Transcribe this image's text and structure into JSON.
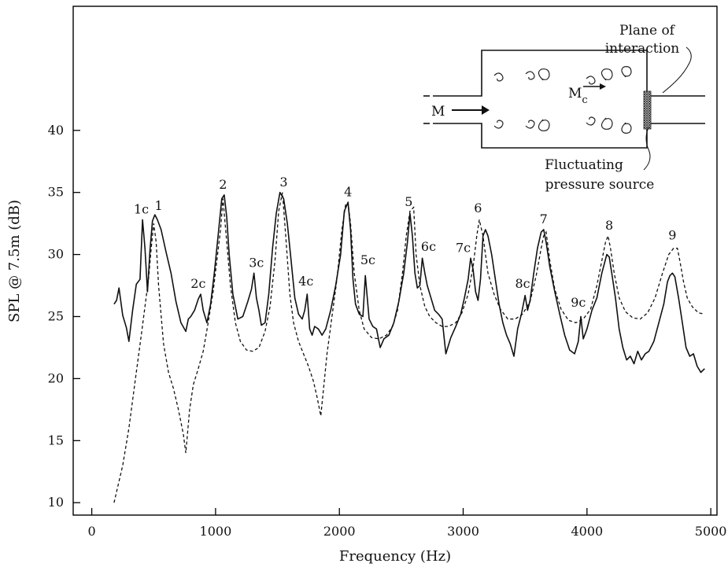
{
  "chart_data": {
    "type": "line",
    "xlabel": "Frequency (Hz)",
    "ylabel": "SPL @ 7.5m (dB)",
    "xlim": [
      -150,
      5050
    ],
    "ylim": [
      9,
      50
    ],
    "xticks": [
      0,
      1000,
      2000,
      3000,
      4000,
      5000
    ],
    "yticks": [
      10,
      15,
      20,
      25,
      30,
      35,
      40
    ],
    "grid": false,
    "series": [
      {
        "style": "solid",
        "x": [
          180,
          200,
          220,
          250,
          280,
          300,
          330,
          360,
          390,
          410,
          430,
          450,
          470,
          490,
          510,
          530,
          560,
          600,
          640,
          680,
          720,
          760,
          780,
          800,
          830,
          860,
          880,
          900,
          930,
          960,
          990,
          1020,
          1050,
          1070,
          1090,
          1110,
          1140,
          1180,
          1220,
          1260,
          1290,
          1310,
          1330,
          1350,
          1370,
          1400,
          1430,
          1460,
          1490,
          1520,
          1550,
          1580,
          1610,
          1640,
          1670,
          1700,
          1720,
          1740,
          1760,
          1780,
          1800,
          1830,
          1860,
          1890,
          1930,
          1970,
          2010,
          2040,
          2070,
          2090,
          2110,
          2130,
          2160,
          2190,
          2210,
          2240,
          2270,
          2300,
          2330,
          2360,
          2400,
          2440,
          2480,
          2520,
          2550,
          2570,
          2590,
          2610,
          2630,
          2650,
          2670,
          2690,
          2710,
          2740,
          2770,
          2800,
          2830,
          2860,
          2900,
          2940,
          2980,
          3010,
          3040,
          3060,
          3080,
          3100,
          3120,
          3140,
          3160,
          3180,
          3200,
          3230,
          3260,
          3290,
          3320,
          3350,
          3380,
          3410,
          3440,
          3470,
          3500,
          3520,
          3540,
          3570,
          3600,
          3630,
          3650,
          3670,
          3700,
          3740,
          3780,
          3820,
          3860,
          3900,
          3930,
          3950,
          3970,
          4000,
          4040,
          4080,
          4120,
          4160,
          4180,
          4200,
          4230,
          4260,
          4290,
          4320,
          4350,
          4380,
          4410,
          4440,
          4470,
          4500,
          4540,
          4580,
          4620,
          4650,
          4670,
          4690,
          4710,
          4740,
          4770,
          4800,
          4830,
          4860,
          4890,
          4920,
          4950
        ],
        "y": [
          26,
          26.3,
          27.3,
          25.1,
          24.1,
          23,
          25.5,
          27.6,
          28,
          32.8,
          30.5,
          27,
          30.3,
          32.7,
          33.2,
          32.8,
          32,
          30.2,
          28.5,
          26.2,
          24.5,
          23.8,
          24.8,
          25,
          25.5,
          26.4,
          26.8,
          25.5,
          24.5,
          26,
          28.5,
          31.5,
          34.5,
          34.8,
          33,
          30,
          26.8,
          24.8,
          25,
          26.2,
          27.2,
          28.5,
          26.5,
          25.5,
          24.3,
          24.5,
          26.8,
          30.5,
          33.3,
          35,
          34.5,
          32.5,
          29.5,
          26.5,
          25.2,
          24.8,
          25.5,
          26.8,
          24,
          23.5,
          24.2,
          24,
          23.5,
          24,
          25.5,
          27.5,
          30,
          33.5,
          34.2,
          32,
          28,
          26,
          25.2,
          25,
          28.3,
          24.8,
          24.2,
          24,
          22.5,
          23.2,
          23.5,
          24.5,
          26.2,
          28.5,
          31,
          33.3,
          31.5,
          28.5,
          27.3,
          27.5,
          29.7,
          28.5,
          27.5,
          26.5,
          25.5,
          25.2,
          24.8,
          22,
          23.3,
          24.2,
          25.2,
          26.5,
          28,
          29.7,
          28.8,
          27,
          26.3,
          28,
          31.5,
          32,
          31.5,
          30,
          28,
          26,
          24.5,
          23.5,
          22.8,
          21.8,
          24,
          25.2,
          26.7,
          25.5,
          26.3,
          28.5,
          30.5,
          31.8,
          32,
          31,
          29,
          27,
          25.2,
          23.5,
          22.3,
          22,
          23,
          25,
          23.2,
          24,
          25.5,
          26.5,
          28.5,
          30,
          29.8,
          28.5,
          26.5,
          24,
          22.5,
          21.5,
          21.8,
          21.2,
          22.2,
          21.5,
          22,
          22.2,
          23,
          24.5,
          26,
          27.8,
          28.3,
          28.5,
          28.2,
          26.5,
          24.5,
          22.5,
          21.8,
          22,
          21,
          20.5,
          20.8
        ]
      },
      {
        "style": "dashed",
        "x": [
          180,
          250,
          300,
          350,
          400,
          430,
          460,
          480,
          500,
          520,
          540,
          580,
          620,
          660,
          700,
          740,
          760,
          790,
          820,
          860,
          900,
          940,
          980,
          1010,
          1040,
          1060,
          1090,
          1120,
          1160,
          1200,
          1250,
          1300,
          1350,
          1400,
          1440,
          1480,
          1510,
          1540,
          1570,
          1600,
          1630,
          1670,
          1710,
          1750,
          1790,
          1820,
          1850,
          1870,
          1900,
          1940,
          1980,
          2020,
          2050,
          2070,
          2090,
          2120,
          2160,
          2200,
          2260,
          2320,
          2380,
          2430,
          2470,
          2510,
          2540,
          2570,
          2600,
          2620,
          2650,
          2690,
          2730,
          2780,
          2830,
          2880,
          2940,
          2990,
          3040,
          3080,
          3110,
          3130,
          3160,
          3200,
          3250,
          3300,
          3360,
          3420,
          3480,
          3540,
          3590,
          3630,
          3650,
          3670,
          3700,
          3740,
          3790,
          3850,
          3910,
          3970,
          4030,
          4080,
          4120,
          4150,
          4170,
          4190,
          4220,
          4260,
          4310,
          4370,
          4430,
          4490,
          4550,
          4610,
          4660,
          4700,
          4730,
          4750,
          4780,
          4810,
          4850,
          4900,
          4950
        ],
        "y": [
          10,
          13,
          16,
          19.8,
          23.5,
          25.8,
          28.2,
          30.5,
          32.5,
          31,
          27.5,
          22.8,
          20.5,
          19.2,
          17.5,
          15.5,
          14,
          17.5,
          19.5,
          20.8,
          22.2,
          24.5,
          27,
          29.5,
          32,
          34.5,
          31,
          27.5,
          24.5,
          23,
          22.3,
          22.2,
          22.5,
          23.8,
          25.8,
          29.5,
          33.5,
          35,
          31,
          26.8,
          24.5,
          23,
          22,
          21,
          19.8,
          18.5,
          17,
          19,
          22,
          25,
          28,
          32,
          34,
          34.2,
          32.5,
          28.5,
          25.5,
          24,
          23.3,
          23.2,
          23.5,
          24.2,
          25.5,
          28.5,
          31.5,
          33.5,
          33.8,
          30,
          27.5,
          25.8,
          25,
          24.5,
          24.2,
          24.2,
          24.5,
          25.3,
          26.8,
          29,
          31.5,
          32.8,
          31.5,
          28.5,
          26.8,
          25.6,
          24.8,
          24.8,
          25.2,
          26.2,
          28.3,
          30.5,
          31.5,
          31.8,
          29.5,
          27.2,
          25.6,
          24.7,
          24.5,
          24.8,
          25.6,
          27.5,
          29.5,
          31,
          31.5,
          30.5,
          28.5,
          26.5,
          25.4,
          24.9,
          24.8,
          25.3,
          26.5,
          28.5,
          30,
          30.5,
          30.5,
          29.5,
          27.8,
          26.5,
          25.8,
          25.3,
          25.2
        ]
      }
    ],
    "peak_labels": [
      {
        "text": "1c",
        "x": 400,
        "y": 33.3
      },
      {
        "text": "1",
        "x": 540,
        "y": 33.6
      },
      {
        "text": "2c",
        "x": 860,
        "y": 27.3
      },
      {
        "text": "2",
        "x": 1060,
        "y": 35.3
      },
      {
        "text": "3c",
        "x": 1330,
        "y": 29
      },
      {
        "text": "3",
        "x": 1550,
        "y": 35.5
      },
      {
        "text": "4c",
        "x": 1730,
        "y": 27.5
      },
      {
        "text": "4",
        "x": 2070,
        "y": 34.7
      },
      {
        "text": "5c",
        "x": 2230,
        "y": 29.2
      },
      {
        "text": "5",
        "x": 2560,
        "y": 33.9
      },
      {
        "text": "6c",
        "x": 2720,
        "y": 30.3
      },
      {
        "text": "6",
        "x": 3120,
        "y": 33.4
      },
      {
        "text": "7c",
        "x": 3000,
        "y": 30.2
      },
      {
        "text": "7",
        "x": 3650,
        "y": 32.5
      },
      {
        "text": "8c",
        "x": 3480,
        "y": 27.3
      },
      {
        "text": "8",
        "x": 4180,
        "y": 32
      },
      {
        "text": "9c",
        "x": 3930,
        "y": 25.8
      },
      {
        "text": "9",
        "x": 4690,
        "y": 31.2
      }
    ]
  },
  "inset": {
    "flow_label": "M",
    "core_flow_label": "M",
    "core_flow_subscript": "c",
    "interaction_label_line1": "Plane of",
    "interaction_label_line2": "interaction",
    "source_label_line1": "Fluctuating",
    "source_label_line2": "pressure source"
  }
}
